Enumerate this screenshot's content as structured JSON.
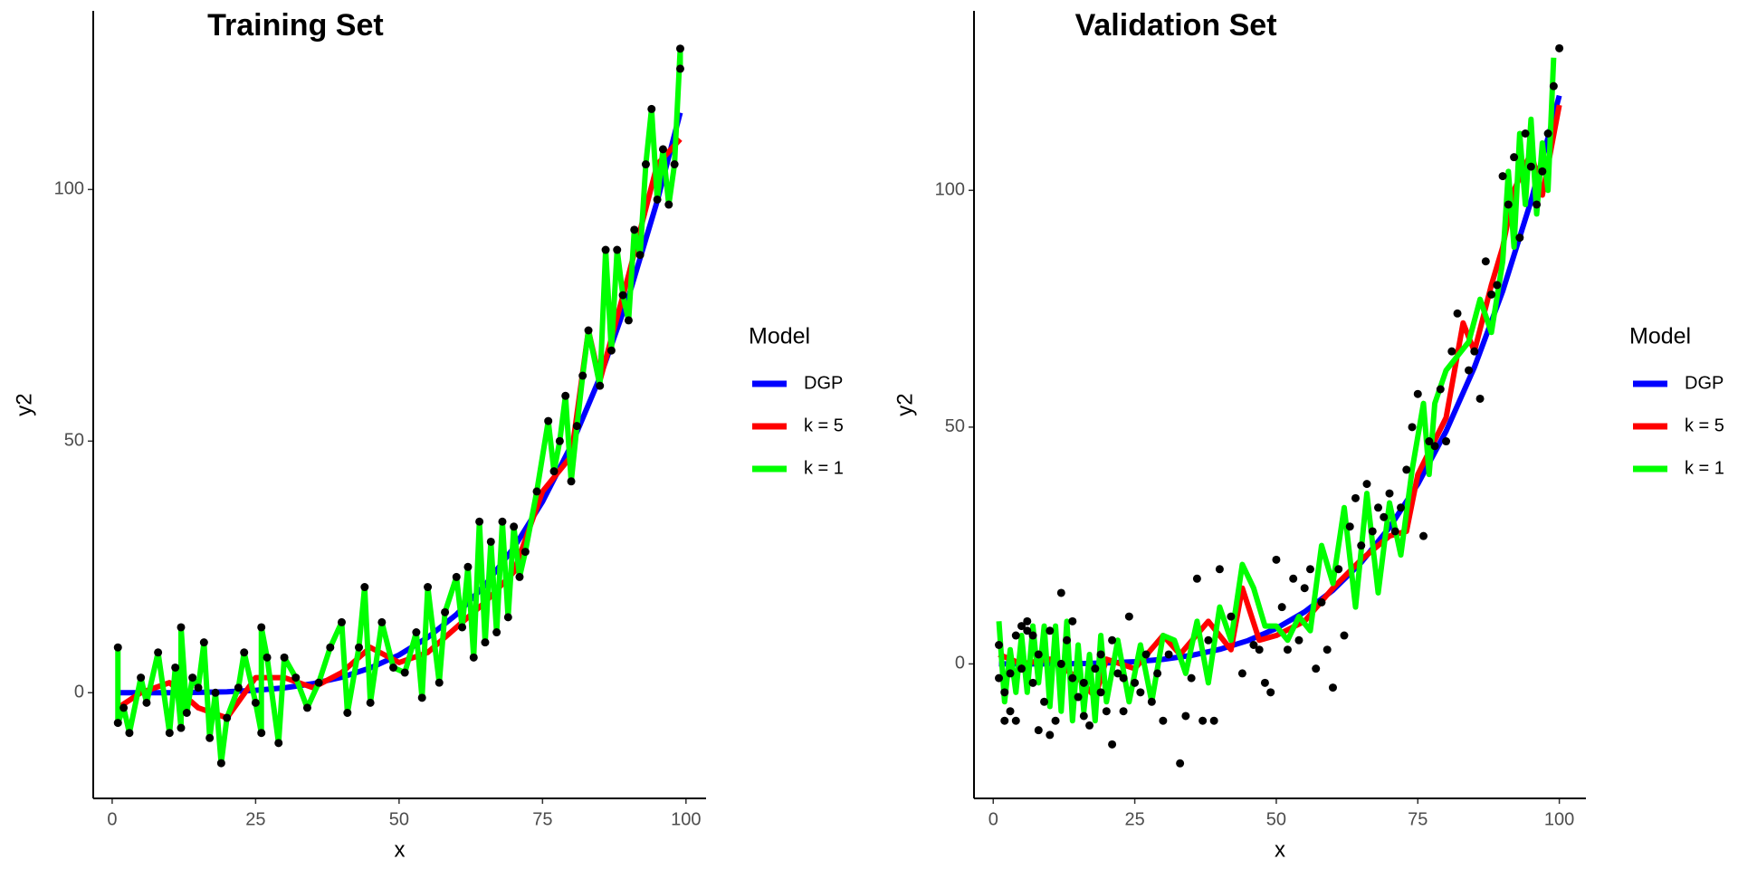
{
  "chart_data": [
    {
      "type": "line",
      "title": "Training Set",
      "x_label": "x",
      "y_label": "y2",
      "legend_title": "Model",
      "legend": "right",
      "xlim": [
        -3.3,
        103.5
      ],
      "ylim": [
        -21,
        135.5
      ],
      "xticks": [
        0,
        25,
        50,
        75,
        100
      ],
      "yticks": [
        0,
        50,
        100
      ],
      "points": {
        "color": "#000000",
        "x": [
          1,
          1,
          2,
          3,
          5,
          6,
          8,
          10,
          11,
          12,
          12,
          13,
          14,
          15,
          16,
          17,
          18,
          19,
          20,
          22,
          23,
          25,
          26,
          26,
          27,
          29,
          30,
          32,
          34,
          36,
          38,
          40,
          41,
          43,
          44,
          45,
          47,
          49,
          51,
          53,
          54,
          55,
          57,
          58,
          60,
          61,
          62,
          63,
          64,
          65,
          66,
          67,
          68,
          69,
          70,
          71,
          72,
          74,
          76,
          77,
          78,
          79,
          80,
          81,
          82,
          83,
          85,
          86,
          87,
          88,
          89,
          90,
          91,
          92,
          93,
          94,
          95,
          96,
          97,
          98,
          99,
          99
        ],
        "values": [
          9,
          -6,
          -3,
          -8,
          3,
          -2,
          8,
          -8,
          5,
          -7,
          13,
          -4,
          3,
          1,
          10,
          -9,
          0,
          -14,
          -5,
          1,
          8,
          -2,
          -8,
          13,
          7,
          -10,
          7,
          3,
          -3,
          2,
          9,
          14,
          -4,
          9,
          21,
          -2,
          14,
          5,
          4,
          12,
          -1,
          21,
          2,
          16,
          23,
          13,
          25,
          7,
          34,
          10,
          30,
          12,
          34,
          15,
          33,
          23,
          28,
          40,
          54,
          44,
          50,
          59,
          42,
          53,
          63,
          72,
          61,
          88,
          68,
          88,
          79,
          74,
          92,
          87,
          105,
          116,
          98,
          108,
          97,
          105,
          128,
          124
        ]
      },
      "series": [
        {
          "name": "DGP",
          "color": "#0000ff",
          "x": [
            1,
            5,
            10,
            15,
            20,
            25,
            30,
            35,
            40,
            45,
            50,
            55,
            60,
            65,
            70,
            75,
            80,
            85,
            90,
            95,
            99
          ],
          "values": [
            0,
            0,
            0.01,
            0.06,
            0.19,
            0.47,
            0.97,
            1.8,
            3.07,
            4.92,
            7.5,
            10.98,
            15.55,
            21.42,
            28.81,
            37.97,
            49.15,
            62.64,
            78.73,
            97.74,
            115.27
          ]
        },
        {
          "name": "k = 5",
          "color": "#ff0000",
          "x": [
            1,
            5,
            10,
            15,
            20,
            25,
            30,
            35,
            40,
            45,
            50,
            55,
            60,
            65,
            70,
            75,
            80,
            83,
            85,
            90,
            95,
            99
          ],
          "values": [
            -3,
            0,
            2,
            -3,
            -5,
            3,
            3,
            1,
            4,
            9,
            6,
            8,
            13,
            18,
            24,
            40,
            47,
            72,
            62,
            83,
            105,
            110
          ]
        },
        {
          "name": "k = 1",
          "color": "#00ff00",
          "x": [
            1,
            1,
            2,
            3,
            5,
            6,
            8,
            10,
            11,
            12,
            12,
            13,
            14,
            15,
            16,
            17,
            18,
            19,
            20,
            22,
            23,
            25,
            26,
            26,
            27,
            29,
            30,
            32,
            34,
            36,
            38,
            40,
            41,
            43,
            44,
            45,
            47,
            49,
            51,
            53,
            54,
            55,
            57,
            58,
            60,
            61,
            62,
            63,
            64,
            65,
            66,
            67,
            68,
            69,
            70,
            71,
            72,
            74,
            76,
            77,
            78,
            79,
            80,
            81,
            82,
            83,
            85,
            86,
            87,
            88,
            89,
            90,
            91,
            92,
            93,
            94,
            95,
            96,
            97,
            98,
            99,
            99
          ],
          "values": [
            9,
            -6,
            -3,
            -8,
            3,
            -2,
            8,
            -8,
            5,
            -7,
            13,
            -4,
            3,
            1,
            10,
            -9,
            0,
            -14,
            -5,
            1,
            8,
            -2,
            -8,
            13,
            7,
            -10,
            7,
            3,
            -3,
            2,
            9,
            14,
            -4,
            9,
            21,
            -2,
            14,
            5,
            4,
            12,
            -1,
            21,
            2,
            16,
            23,
            13,
            25,
            7,
            34,
            10,
            30,
            12,
            34,
            15,
            33,
            23,
            28,
            40,
            54,
            44,
            50,
            59,
            42,
            53,
            63,
            72,
            61,
            88,
            68,
            88,
            79,
            74,
            92,
            87,
            105,
            116,
            98,
            108,
            97,
            105,
            128,
            124
          ]
        }
      ]
    },
    {
      "type": "line",
      "title": "Validation Set",
      "x_label": "x",
      "y_label": "y2",
      "legend_title": "Model",
      "legend": "right",
      "xlim": [
        -3.4,
        104.7
      ],
      "ylim": [
        -28.4,
        137.9
      ],
      "xticks": [
        0,
        25,
        50,
        75,
        100
      ],
      "yticks": [
        0,
        50,
        100
      ],
      "points": {
        "color": "#000000",
        "x": [
          1,
          1,
          2,
          2,
          3,
          3,
          4,
          4,
          5,
          5,
          6,
          6,
          7,
          7,
          8,
          8,
          9,
          10,
          10,
          11,
          12,
          12,
          13,
          14,
          14,
          15,
          16,
          16,
          17,
          18,
          19,
          19,
          20,
          21,
          21,
          22,
          23,
          23,
          24,
          25,
          26,
          27,
          28,
          29,
          30,
          31,
          33,
          34,
          35,
          36,
          37,
          38,
          39,
          40,
          42,
          44,
          46,
          47,
          48,
          49,
          50,
          51,
          52,
          53,
          54,
          55,
          56,
          57,
          58,
          59,
          60,
          61,
          62,
          63,
          64,
          65,
          66,
          67,
          68,
          69,
          70,
          71,
          72,
          73,
          74,
          75,
          76,
          77,
          78,
          79,
          80,
          81,
          82,
          84,
          85,
          86,
          87,
          88,
          89,
          90,
          91,
          92,
          93,
          94,
          95,
          96,
          97,
          98,
          99,
          100
        ],
        "values": [
          4,
          -3,
          -12,
          -6,
          -2,
          -10,
          -12,
          6,
          8,
          -1,
          7,
          9,
          6,
          -4,
          2,
          -14,
          -8,
          -15,
          7,
          -12,
          0,
          15,
          5,
          -3,
          9,
          -7,
          -4,
          -11,
          -13,
          -1,
          -6,
          2,
          -10,
          5,
          -17,
          -2,
          -10,
          -3,
          10,
          -4,
          -6,
          2,
          -8,
          -2,
          -12,
          2,
          -21,
          -11,
          -3,
          18,
          -12,
          5,
          -12,
          20,
          10,
          -2,
          4,
          3,
          -4,
          -6,
          22,
          12,
          3,
          18,
          5,
          16,
          20,
          -1,
          13,
          3,
          -5,
          20,
          6,
          29,
          35,
          25,
          38,
          28,
          33,
          31,
          36,
          28,
          33,
          41,
          50,
          57,
          27,
          47,
          46,
          58,
          47,
          66,
          74,
          62,
          66,
          56,
          85,
          78,
          80,
          103,
          97,
          107,
          90,
          112,
          105,
          97,
          104,
          112,
          122,
          130
        ]
      },
      "series": [
        {
          "name": "DGP",
          "color": "#0000ff",
          "x": [
            1,
            5,
            10,
            15,
            20,
            25,
            30,
            35,
            40,
            45,
            50,
            55,
            60,
            65,
            70,
            75,
            80,
            85,
            90,
            95,
            100
          ],
          "values": [
            0,
            0,
            0.01,
            0.06,
            0.19,
            0.47,
            0.97,
            1.8,
            3.07,
            4.92,
            7.5,
            10.98,
            15.55,
            21.42,
            28.81,
            37.97,
            49.15,
            62.64,
            78.73,
            97.74,
            120
          ]
        },
        {
          "name": "k = 5",
          "color": "#ff0000",
          "x": [
            1,
            5,
            10,
            15,
            18,
            20,
            25,
            30,
            33,
            38,
            42,
            44,
            47,
            50,
            55,
            60,
            65,
            70,
            73,
            75,
            80,
            83,
            85,
            88,
            90,
            92,
            95,
            97,
            100
          ],
          "values": [
            2,
            0,
            1,
            -3,
            -7,
            1,
            -1,
            6,
            2,
            9,
            3,
            16,
            5,
            6,
            9,
            16,
            22,
            27,
            28,
            40,
            52,
            72,
            66,
            80,
            88,
            100,
            108,
            99,
            118
          ]
        },
        {
          "name": "k = 1",
          "color": "#00ff00",
          "x": [
            1,
            2,
            3,
            4,
            5,
            6,
            7,
            8,
            9,
            10,
            11,
            12,
            13,
            14,
            15,
            16,
            17,
            18,
            19,
            20,
            22,
            24,
            26,
            28,
            30,
            32,
            34,
            36,
            38,
            40,
            42,
            44,
            46,
            48,
            50,
            52,
            54,
            56,
            58,
            60,
            62,
            64,
            66,
            68,
            70,
            72,
            74,
            76,
            77,
            78,
            80,
            82,
            84,
            86,
            88,
            90,
            91,
            92,
            93,
            94,
            95,
            96,
            97,
            98,
            99
          ],
          "values": [
            9,
            -8,
            3,
            -6,
            6,
            -6,
            8,
            -4,
            8,
            -9,
            8,
            -10,
            9,
            -12,
            4,
            -10,
            2,
            -12,
            6,
            -8,
            5,
            -8,
            4,
            -8,
            6,
            5,
            -2,
            9,
            -4,
            12,
            5,
            21,
            16,
            8,
            8,
            5,
            10,
            7,
            25,
            17,
            33,
            12,
            36,
            15,
            34,
            23,
            41,
            55,
            40,
            55,
            62,
            65,
            68,
            77,
            70,
            85,
            104,
            88,
            112,
            97,
            115,
            95,
            110,
            100,
            128
          ]
        }
      ]
    }
  ]
}
